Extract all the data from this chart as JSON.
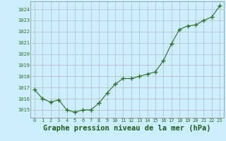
{
  "x": [
    0,
    1,
    2,
    3,
    4,
    5,
    6,
    7,
    8,
    9,
    10,
    11,
    12,
    13,
    14,
    15,
    16,
    17,
    18,
    19,
    20,
    21,
    22,
    23
  ],
  "y": [
    1016.8,
    1016.0,
    1015.7,
    1015.9,
    1015.0,
    1014.8,
    1015.0,
    1015.0,
    1015.6,
    1016.5,
    1017.3,
    1017.8,
    1017.8,
    1018.0,
    1018.2,
    1018.4,
    1019.4,
    1020.9,
    1022.2,
    1022.5,
    1022.6,
    1023.0,
    1023.3,
    1024.3
  ],
  "line_color": "#2d6e2d",
  "marker": "+",
  "bg_color": "#cceeff",
  "grid_color": "#b0b0b0",
  "xlabel": "Graphe pression niveau de la mer (hPa)",
  "xlabel_color": "#1a5c1a",
  "ylabel_ticks": [
    1015,
    1016,
    1017,
    1018,
    1019,
    1020,
    1021,
    1022,
    1023,
    1024
  ],
  "ylim": [
    1014.3,
    1024.7
  ],
  "xlim": [
    -0.5,
    23.5
  ],
  "tick_color": "#2d6e2d",
  "spine_color": "#888888",
  "tick_fontsize": 5.0,
  "xlabel_fontsize": 7.5
}
